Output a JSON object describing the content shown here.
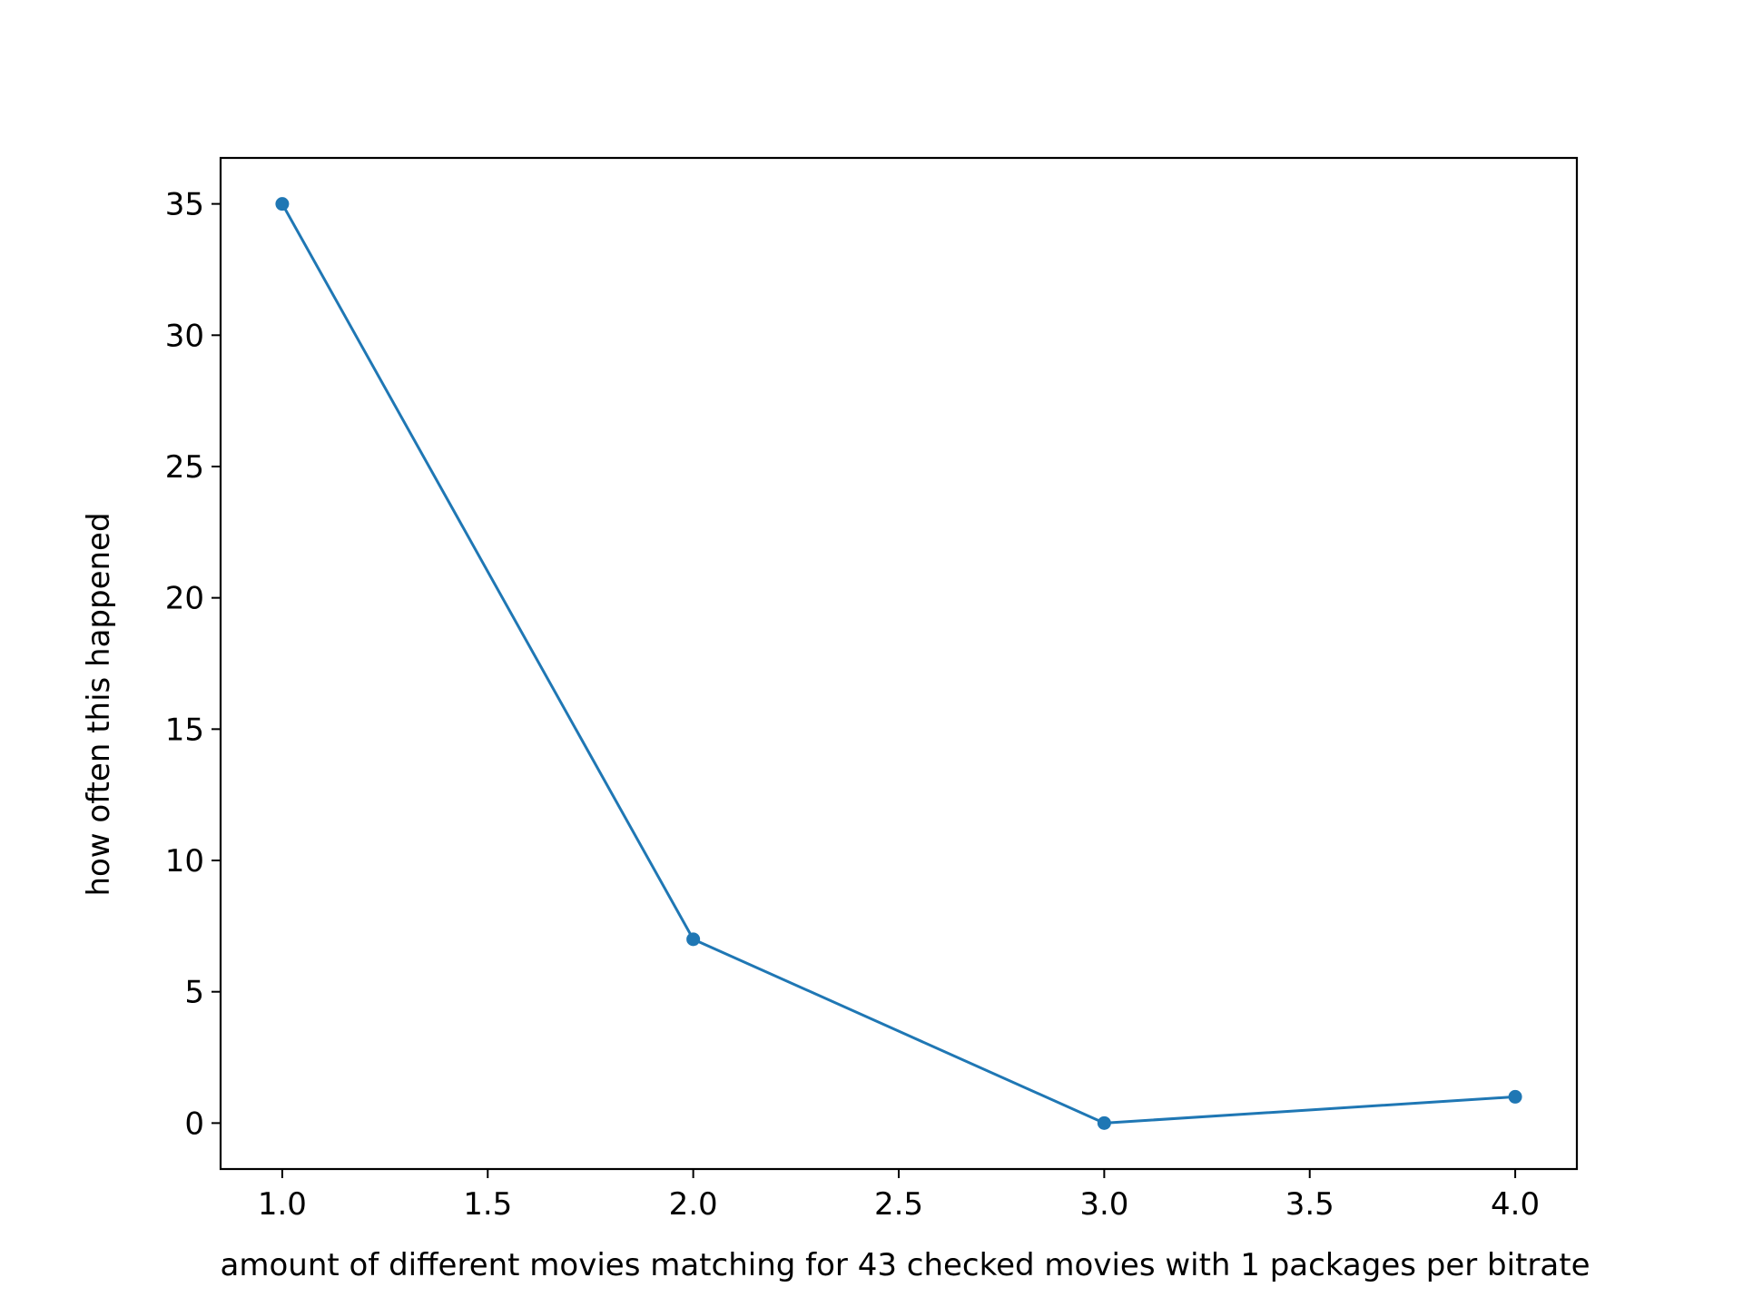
{
  "chart_data": {
    "type": "line",
    "title": "",
    "xlabel": "amount of different movies matching for 43 checked movies with 1 packages per bitrate",
    "ylabel": "how often this happened",
    "x": [
      1.0,
      2.0,
      3.0,
      4.0
    ],
    "series": [
      {
        "values": [
          35,
          7,
          0,
          1
        ],
        "color": "#1f77b4",
        "marker": "circle"
      }
    ],
    "xlim": [
      0.85,
      4.15
    ],
    "ylim": [
      -1.75,
      36.75
    ],
    "xticks": [
      1.0,
      1.5,
      2.0,
      2.5,
      3.0,
      3.5,
      4.0
    ],
    "xtick_labels": [
      "1.0",
      "1.5",
      "2.0",
      "2.5",
      "3.0",
      "3.5",
      "4.0"
    ],
    "yticks": [
      0,
      5,
      10,
      15,
      20,
      25,
      30,
      35
    ],
    "ytick_labels": [
      "0",
      "5",
      "10",
      "15",
      "20",
      "25",
      "30",
      "35"
    ],
    "grid": false,
    "legend": "none"
  }
}
